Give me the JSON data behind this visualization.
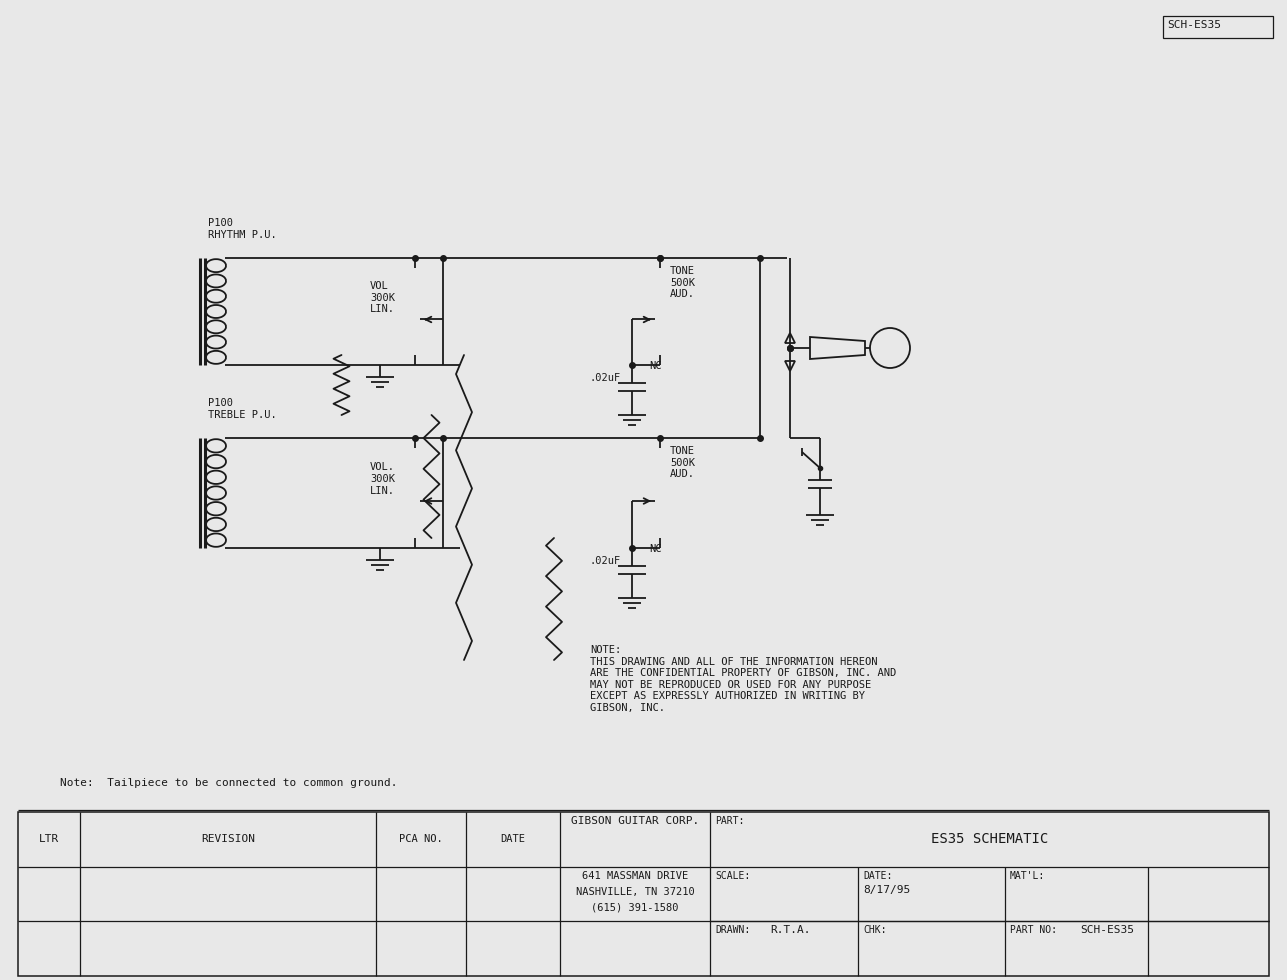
{
  "bg_color": "#e8e8e8",
  "paper_color": "#e8e8e8",
  "line_color": "#1a1a1a",
  "title_block": {
    "company": "GIBSON GUITAR CORP.",
    "address1": "641 MASSMAN DRIVE",
    "address2": "NASHVILLE, TN 37210",
    "address3": "(615) 391-1580",
    "part": "ES35 SCHEMATIC",
    "scale_label": "SCALE:",
    "date_label": "DATE:",
    "date": "8/17/95",
    "matl_label": "MAT'L:",
    "drawn_label": "DRAWN:",
    "drawn": "R.T.A.",
    "chk_label": "CHK:",
    "part_no_label": "PART NO:",
    "part_no": "SCH-ES35",
    "ltr": "LTR",
    "revision": "REVISION",
    "pca_no": "PCA NO.",
    "date_col": "DATE"
  },
  "note_text": "NOTE:\nTHIS DRAWING AND ALL OF THE INFORMATION HEREON\nARE THE CONFIDENTIAL PROPERTY OF GIBSON, INC. AND\nMAY NOT BE REPRODUCED OR USED FOR ANY PURPOSE\nEXCEPT AS EXPRESSLY AUTHORIZED IN WRITING BY\nGIBSON, INC.",
  "note2_text": "Note:  Tailpiece to be connected to common ground.",
  "corner_label": "SCH-ES35",
  "rhythm_label": "P100\nRHYTHM P.U.",
  "treble_label": "P100\nTREBLE P.U.",
  "vol1_label": "VOL\n300K\nLIN.",
  "vol2_label": "VOL.\n300K\nLIN.",
  "tone1_label": "TONE\n500K\nAUD.",
  "tone2_label": "TONE\n500K\nAUD.",
  "cap1_label": ".02uF",
  "cap2_label": ".02uF",
  "nc1_label": "NC",
  "nc2_label": "NC"
}
